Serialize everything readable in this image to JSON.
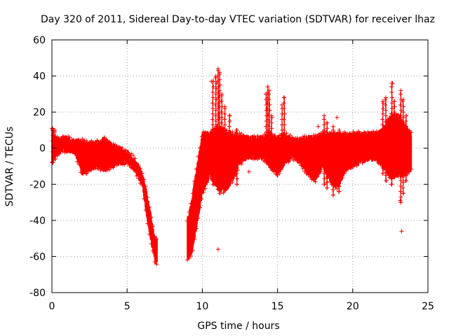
{
  "chart_data": {
    "type": "scatter",
    "title": "Day 320 of 2011, Sidereal Day-to-day VTEC variation (SDTVAR) for receiver lhaz",
    "xlabel": "GPS time / hours",
    "ylabel": "SDTVAR / TECUs",
    "xlim": [
      0,
      25
    ],
    "ylim": [
      -80,
      60
    ],
    "xticks": [
      0,
      5,
      10,
      15,
      20,
      25
    ],
    "xtick_labels": [
      "0",
      "5",
      "10",
      "15",
      "20",
      "25"
    ],
    "yticks": [
      -80,
      -60,
      -40,
      -20,
      0,
      20,
      40,
      60
    ],
    "ytick_labels": [
      "-80",
      "-60",
      "-40",
      "-20",
      "0",
      "20",
      "40",
      "60"
    ],
    "grid": true,
    "marker": "+",
    "color": "#ff0000",
    "envelope": [
      {
        "x": 0.0,
        "low": -8,
        "high": 11
      },
      {
        "x": 0.3,
        "low": -3,
        "high": 5
      },
      {
        "x": 0.8,
        "low": -1,
        "high": 6
      },
      {
        "x": 1.5,
        "low": -2,
        "high": 4
      },
      {
        "x": 2.0,
        "low": -14,
        "high": 4
      },
      {
        "x": 2.5,
        "low": -12,
        "high": 3
      },
      {
        "x": 3.0,
        "low": -10,
        "high": 3
      },
      {
        "x": 3.5,
        "low": -12,
        "high": 5
      },
      {
        "x": 4.0,
        "low": -10,
        "high": 2
      },
      {
        "x": 4.5,
        "low": -8,
        "high": 0
      },
      {
        "x": 5.0,
        "low": -8,
        "high": -2
      },
      {
        "x": 5.5,
        "low": -12,
        "high": -6
      },
      {
        "x": 6.0,
        "low": -20,
        "high": -14
      },
      {
        "x": 6.3,
        "low": -38,
        "high": -24
      },
      {
        "x": 6.6,
        "low": -52,
        "high": -38
      },
      {
        "x": 6.85,
        "low": -63,
        "high": -50
      },
      {
        "x": 7.0,
        "low": -63,
        "high": -50
      },
      {
        "x": 9.0,
        "low": -61,
        "high": -40
      },
      {
        "x": 9.3,
        "low": -58,
        "high": -28
      },
      {
        "x": 9.6,
        "low": -45,
        "high": -12
      },
      {
        "x": 10.0,
        "low": -25,
        "high": 8
      },
      {
        "x": 10.5,
        "low": -15,
        "high": 8
      },
      {
        "x": 11.0,
        "low": -22,
        "high": 12
      },
      {
        "x": 11.5,
        "low": -24,
        "high": 10
      },
      {
        "x": 12.0,
        "low": -18,
        "high": 8
      },
      {
        "x": 12.5,
        "low": -8,
        "high": 7
      },
      {
        "x": 13.0,
        "low": -5,
        "high": 6
      },
      {
        "x": 13.5,
        "low": -5,
        "high": 6
      },
      {
        "x": 14.0,
        "low": -5,
        "high": 6
      },
      {
        "x": 14.5,
        "low": -10,
        "high": 8
      },
      {
        "x": 15.0,
        "low": -15,
        "high": 6
      },
      {
        "x": 15.5,
        "low": -8,
        "high": 8
      },
      {
        "x": 16.0,
        "low": -5,
        "high": 5
      },
      {
        "x": 16.5,
        "low": -8,
        "high": 5
      },
      {
        "x": 17.0,
        "low": -14,
        "high": 6
      },
      {
        "x": 17.5,
        "low": -18,
        "high": 6
      },
      {
        "x": 18.0,
        "low": -10,
        "high": 8
      },
      {
        "x": 18.5,
        "low": -18,
        "high": 8
      },
      {
        "x": 19.0,
        "low": -22,
        "high": 8
      },
      {
        "x": 19.5,
        "low": -12,
        "high": 8
      },
      {
        "x": 20.0,
        "low": -10,
        "high": 8
      },
      {
        "x": 20.5,
        "low": -8,
        "high": 8
      },
      {
        "x": 21.0,
        "low": -6,
        "high": 8
      },
      {
        "x": 21.5,
        "low": -6,
        "high": 8
      },
      {
        "x": 22.0,
        "low": -10,
        "high": 10
      },
      {
        "x": 22.5,
        "low": -16,
        "high": 18
      },
      {
        "x": 23.0,
        "low": -15,
        "high": 18
      },
      {
        "x": 23.5,
        "low": -14,
        "high": 12
      },
      {
        "x": 23.9,
        "low": -12,
        "high": 8
      }
    ],
    "spikes": [
      {
        "x": 0.05,
        "low": -8,
        "high": 11
      },
      {
        "x": 0.2,
        "low": -6,
        "high": 10
      },
      {
        "x": 10.7,
        "low": -20,
        "high": 37
      },
      {
        "x": 10.9,
        "low": -15,
        "high": 40
      },
      {
        "x": 11.05,
        "low": -20,
        "high": 44
      },
      {
        "x": 11.15,
        "low": -25,
        "high": 42
      },
      {
        "x": 11.3,
        "low": -22,
        "high": 30
      },
      {
        "x": 11.5,
        "low": -20,
        "high": 23
      },
      {
        "x": 11.8,
        "low": -15,
        "high": 18
      },
      {
        "x": 12.3,
        "low": -20,
        "high": 10
      },
      {
        "x": 14.25,
        "low": -6,
        "high": 30
      },
      {
        "x": 14.35,
        "low": -5,
        "high": 34
      },
      {
        "x": 14.45,
        "low": -6,
        "high": 32
      },
      {
        "x": 14.6,
        "low": -10,
        "high": 18
      },
      {
        "x": 15.3,
        "low": -8,
        "high": 24
      },
      {
        "x": 15.45,
        "low": -8,
        "high": 28
      },
      {
        "x": 18.1,
        "low": -20,
        "high": 18
      },
      {
        "x": 18.3,
        "low": -22,
        "high": 14
      },
      {
        "x": 18.7,
        "low": -26,
        "high": 12
      },
      {
        "x": 19.1,
        "low": -24,
        "high": 10
      },
      {
        "x": 22.0,
        "low": -14,
        "high": 26
      },
      {
        "x": 22.2,
        "low": -18,
        "high": 28
      },
      {
        "x": 22.6,
        "low": -20,
        "high": 36
      },
      {
        "x": 22.75,
        "low": -16,
        "high": 26
      },
      {
        "x": 23.2,
        "low": -30,
        "high": 32
      },
      {
        "x": 23.35,
        "low": -25,
        "high": 27
      },
      {
        "x": 23.55,
        "low": -18,
        "high": 18
      }
    ],
    "outliers": [
      {
        "x": 11.05,
        "y": -56
      },
      {
        "x": 13.1,
        "y": -13
      },
      {
        "x": 18.95,
        "y": 17
      },
      {
        "x": 23.25,
        "y": -46
      },
      {
        "x": 23.15,
        "y": -29
      },
      {
        "x": 10.6,
        "y": 37
      },
      {
        "x": 10.9,
        "y": -17
      },
      {
        "x": 11.2,
        "y": -22
      },
      {
        "x": 15.2,
        "y": -12
      },
      {
        "x": 22.65,
        "y": 36
      },
      {
        "x": 2.3,
        "y": -14
      },
      {
        "x": 17.7,
        "y": 12
      }
    ]
  }
}
